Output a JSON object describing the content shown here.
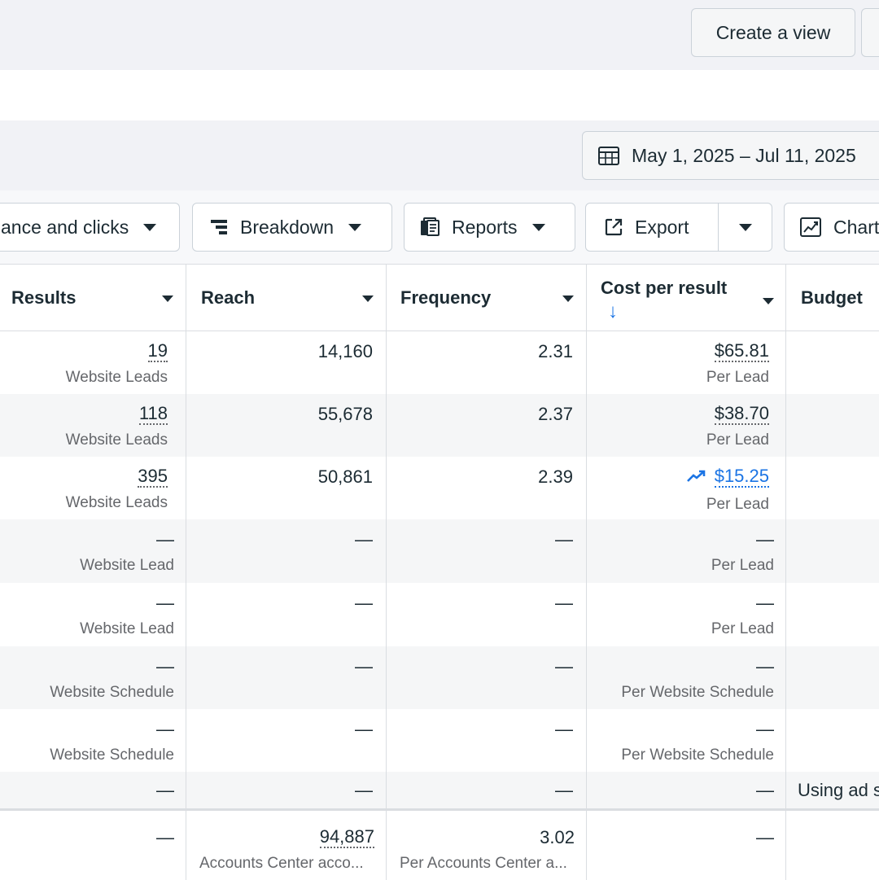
{
  "top_bar": {
    "create_view_label": "Create a view"
  },
  "date_range": {
    "label": "May 1, 2025 – Jul 11, 2025"
  },
  "toolbar": {
    "columns_label": "ance and clicks",
    "breakdown_label": "Breakdown",
    "reports_label": "Reports",
    "export_label": "Export",
    "charts_label": "Chart"
  },
  "columns": [
    {
      "label": "Results"
    },
    {
      "label": "Reach"
    },
    {
      "label": "Frequency"
    },
    {
      "label": "Cost per result"
    },
    {
      "label": "Budget"
    }
  ],
  "sort_indicator": "↓",
  "rows": [
    {
      "results": "19",
      "results_sub": "Website Leads",
      "reach": "14,160",
      "frequency": "2.31",
      "cost": "$65.81",
      "cost_sub": "Per Lead",
      "budget": ""
    },
    {
      "results": "118",
      "results_sub": "Website Leads",
      "reach": "55,678",
      "frequency": "2.37",
      "cost": "$38.70",
      "cost_sub": "Per Lead",
      "budget": ""
    },
    {
      "results": "395",
      "results_sub": "Website Leads",
      "reach": "50,861",
      "frequency": "2.39",
      "cost": "$15.25",
      "cost_sub": "Per Lead",
      "budget": ""
    },
    {
      "results": "—",
      "results_sub": "Website Lead",
      "reach": "—",
      "frequency": "—",
      "cost": "—",
      "cost_sub": "Per Lead",
      "budget": ""
    },
    {
      "results": "—",
      "results_sub": "Website Lead",
      "reach": "—",
      "frequency": "—",
      "cost": "—",
      "cost_sub": "Per Lead",
      "budget": ""
    },
    {
      "results": "—",
      "results_sub": "Website Schedule",
      "reach": "—",
      "frequency": "—",
      "cost": "—",
      "cost_sub": "Per Website Schedule",
      "budget": ""
    },
    {
      "results": "—",
      "results_sub": "Website Schedule",
      "reach": "—",
      "frequency": "—",
      "cost": "—",
      "cost_sub": "Per Website Schedule",
      "budget": ""
    },
    {
      "results": "—",
      "results_sub": "",
      "reach": "—",
      "frequency": "—",
      "cost": "—",
      "cost_sub": "",
      "budget": "Using ad s"
    }
  ],
  "totals": {
    "results": "—",
    "reach": "94,887",
    "reach_sub": "Accounts Center acco...",
    "frequency": "3.02",
    "frequency_sub": "Per Accounts Center a...",
    "cost": "—"
  },
  "colors": {
    "link_blue": "#1b74e4",
    "row_alt": "#f5f6f7",
    "border": "#dadde1"
  }
}
